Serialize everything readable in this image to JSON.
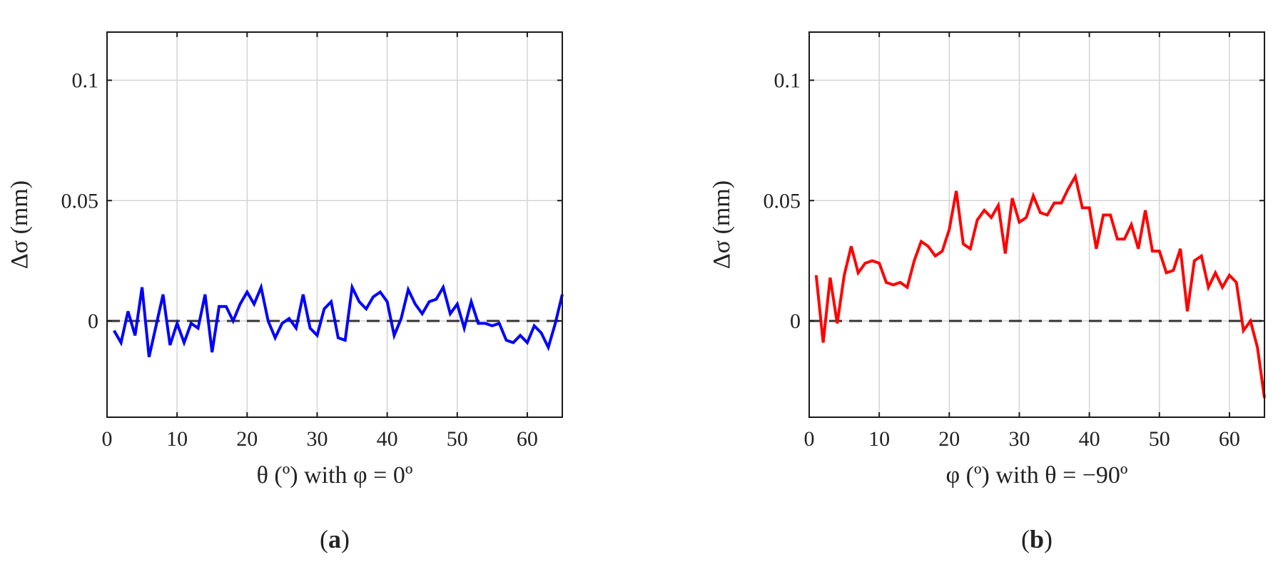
{
  "chart_data": [
    {
      "type": "line",
      "panel_label": "(a)",
      "xlabel": "θ (º) with φ = 0º",
      "ylabel": "Δσ (mm)",
      "xlim": [
        0,
        65
      ],
      "ylim": [
        -0.04,
        0.12
      ],
      "xticks": [
        0,
        10,
        20,
        30,
        40,
        50,
        60
      ],
      "yticks": [
        0,
        0.05,
        0.1
      ],
      "xtick_labels": [
        "0",
        "10",
        "20",
        "30",
        "40",
        "50",
        "60"
      ],
      "ytick_labels": [
        "0",
        "0.05",
        "0.1"
      ],
      "grid": true,
      "reference_line": {
        "y": 0,
        "style": "dashed",
        "color": "#333333"
      },
      "series": [
        {
          "color": "#0000ff",
          "x": [
            1,
            2,
            3,
            4,
            5,
            6,
            7,
            8,
            9,
            10,
            11,
            12,
            13,
            14,
            15,
            16,
            17,
            18,
            19,
            20,
            21,
            22,
            23,
            24,
            25,
            26,
            27,
            28,
            29,
            30,
            31,
            32,
            33,
            34,
            35,
            36,
            37,
            38,
            39,
            40,
            41,
            42,
            43,
            44,
            45,
            46,
            47,
            48,
            49,
            50,
            51,
            52,
            53,
            54,
            55,
            56,
            57,
            58,
            59,
            60,
            61,
            62,
            63,
            64,
            65
          ],
          "y": [
            -0.004,
            -0.009,
            0.004,
            -0.006,
            0.014,
            -0.015,
            -0.002,
            0.011,
            -0.01,
            -0.001,
            -0.009,
            -0.001,
            -0.003,
            0.011,
            -0.013,
            0.006,
            0.006,
            0.0,
            0.007,
            0.012,
            0.007,
            0.014,
            0.0,
            -0.007,
            -0.001,
            0.001,
            -0.003,
            0.011,
            -0.003,
            -0.006,
            0.005,
            0.008,
            -0.007,
            -0.008,
            0.014,
            0.008,
            0.005,
            0.01,
            0.012,
            0.008,
            -0.006,
            0.001,
            0.013,
            0.007,
            0.003,
            0.008,
            0.009,
            0.014,
            0.003,
            0.007,
            -0.003,
            0.008,
            -0.001,
            -0.001,
            -0.002,
            -0.001,
            -0.008,
            -0.009,
            -0.006,
            -0.009,
            -0.002,
            -0.005,
            -0.011,
            -0.001,
            0.011
          ]
        }
      ]
    },
    {
      "type": "line",
      "panel_label": "(b)",
      "xlabel": "φ (º) with θ = −90º",
      "ylabel": "Δσ (mm)",
      "xlim": [
        0,
        65
      ],
      "ylim": [
        -0.04,
        0.12
      ],
      "xticks": [
        0,
        10,
        20,
        30,
        40,
        50,
        60
      ],
      "yticks": [
        0,
        0.05,
        0.1
      ],
      "xtick_labels": [
        "0",
        "10",
        "20",
        "30",
        "40",
        "50",
        "60"
      ],
      "ytick_labels": [
        "0",
        "0.05",
        "0.1"
      ],
      "grid": true,
      "reference_line": {
        "y": 0,
        "style": "dashed",
        "color": "#333333"
      },
      "series": [
        {
          "color": "#ff0000",
          "x": [
            1,
            2,
            3,
            4,
            5,
            6,
            7,
            8,
            9,
            10,
            11,
            12,
            13,
            14,
            15,
            16,
            17,
            18,
            19,
            20,
            21,
            22,
            23,
            24,
            25,
            26,
            27,
            28,
            29,
            30,
            31,
            32,
            33,
            34,
            35,
            36,
            37,
            38,
            39,
            40,
            41,
            42,
            43,
            44,
            45,
            46,
            47,
            48,
            49,
            50,
            51,
            52,
            53,
            54,
            55,
            56,
            57,
            58,
            59,
            60,
            61,
            62,
            63,
            64,
            65
          ],
          "y": [
            0.019,
            -0.009,
            0.018,
            -0.001,
            0.019,
            0.031,
            0.02,
            0.024,
            0.025,
            0.024,
            0.016,
            0.015,
            0.016,
            0.014,
            0.025,
            0.033,
            0.031,
            0.027,
            0.029,
            0.038,
            0.054,
            0.032,
            0.03,
            0.042,
            0.046,
            0.043,
            0.048,
            0.028,
            0.051,
            0.041,
            0.043,
            0.052,
            0.045,
            0.044,
            0.049,
            0.049,
            0.055,
            0.06,
            0.047,
            0.047,
            0.03,
            0.044,
            0.044,
            0.034,
            0.034,
            0.04,
            0.03,
            0.046,
            0.029,
            0.029,
            0.02,
            0.021,
            0.03,
            0.004,
            0.025,
            0.027,
            0.014,
            0.02,
            0.014,
            0.019,
            0.016,
            -0.004,
            0.0,
            -0.011,
            -0.032
          ]
        }
      ]
    }
  ]
}
